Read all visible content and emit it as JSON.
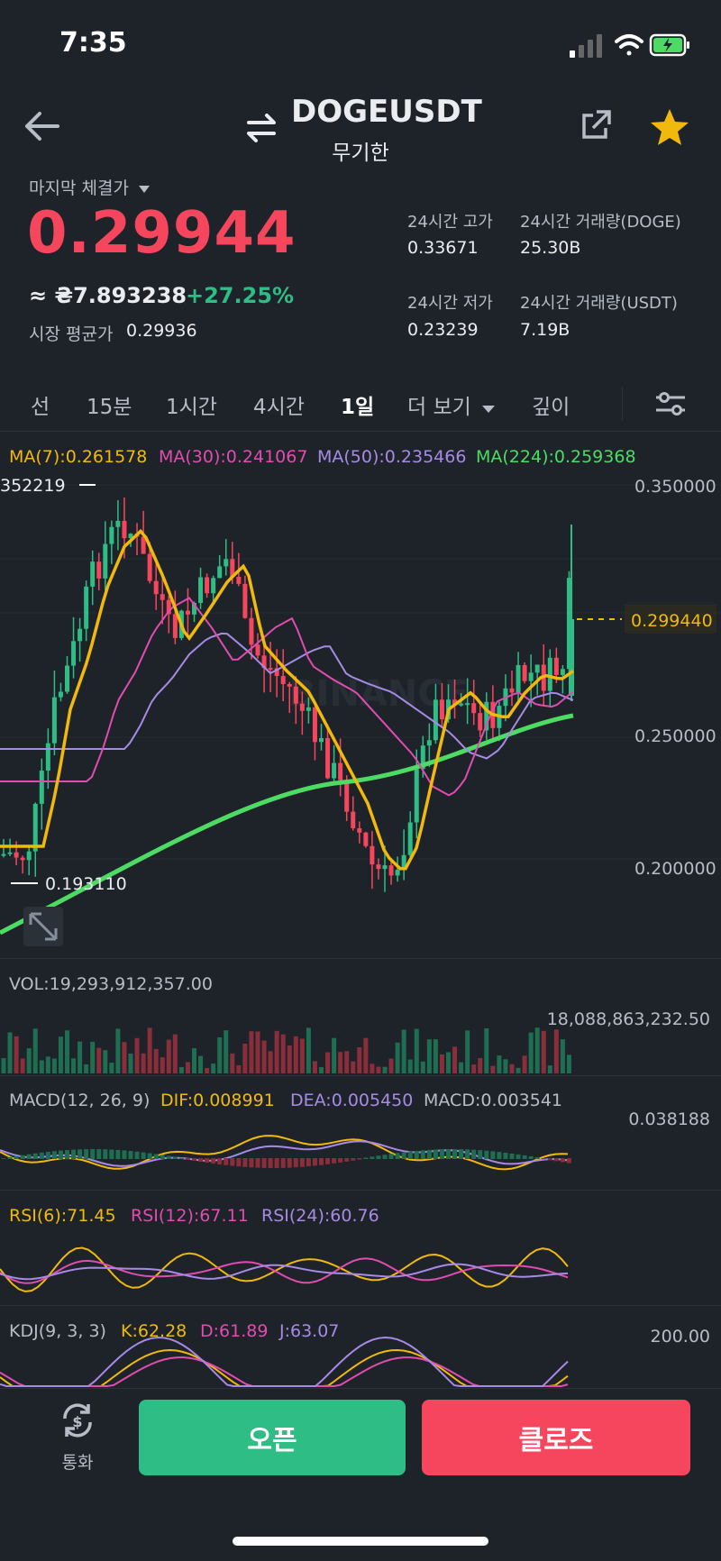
{
  "status": {
    "time": "7:35"
  },
  "header": {
    "symbol": "DOGEUSDT",
    "subtitle": "무기한",
    "icons": [
      "back-arrow-icon",
      "swap-icon",
      "share-icon",
      "star-icon"
    ]
  },
  "price": {
    "last_label": "마지막 체결가",
    "last": "0.29944",
    "approx": "≈ ₴7.893238",
    "change": "+27.25%",
    "mark_label": "시장 평균가",
    "mark": "0.29936"
  },
  "stats": [
    {
      "label": "24시간 고가",
      "value": "0.33671"
    },
    {
      "label": "24시간 거래량(DOGE)",
      "value": "25.30B"
    },
    {
      "label": "24시간 저가",
      "value": "0.23239"
    },
    {
      "label": "24시간 거래량(USDT)",
      "value": "7.19B"
    }
  ],
  "tabs": [
    "선",
    "15분",
    "1시간",
    "4시간",
    "1일",
    "더 보기",
    "깊이"
  ],
  "active_tab": "1일",
  "ma": {
    "ma7": "MA(7):0.261578",
    "ma30": "MA(30):0.241067",
    "ma50": "MA(50):0.235466",
    "ma224": "MA(224):0.259368"
  },
  "price_axis": [
    "0.350000",
    "0.250000",
    "0.200000"
  ],
  "current_price_tag": "0.299440",
  "high_label": "352219",
  "low_label": "0.193110",
  "watermark": "BINANCE",
  "volume": {
    "label": "VOL:19,293,912,357.00",
    "axis": "18,088,863,232.50"
  },
  "macd": {
    "name": "MACD(12, 26, 9)",
    "dif": "DIF:0.008991",
    "dea": "DEA:0.005450",
    "macd": "MACD:0.003541",
    "axis": "0.038188"
  },
  "rsi": {
    "r6": "RSI(6):71.45",
    "r12": "RSI(12):67.11",
    "r24": "RSI(24):60.76"
  },
  "kdj": {
    "name": "KDJ(9, 3, 3)",
    "k": "K:62.28",
    "d": "D:61.89",
    "j": "J:63.07",
    "axis": "200.00"
  },
  "bottom": {
    "currency_label": "통화",
    "open_label": "오픈",
    "close_label": "클로즈"
  },
  "colors": {
    "up": "#2ebd85",
    "down": "#f6465d",
    "accent": "#f0b90b",
    "ma7": "#f0b90b",
    "ma30": "#e04cb0",
    "ma50": "#a78ae6",
    "ma224": "#4ddc63"
  }
}
